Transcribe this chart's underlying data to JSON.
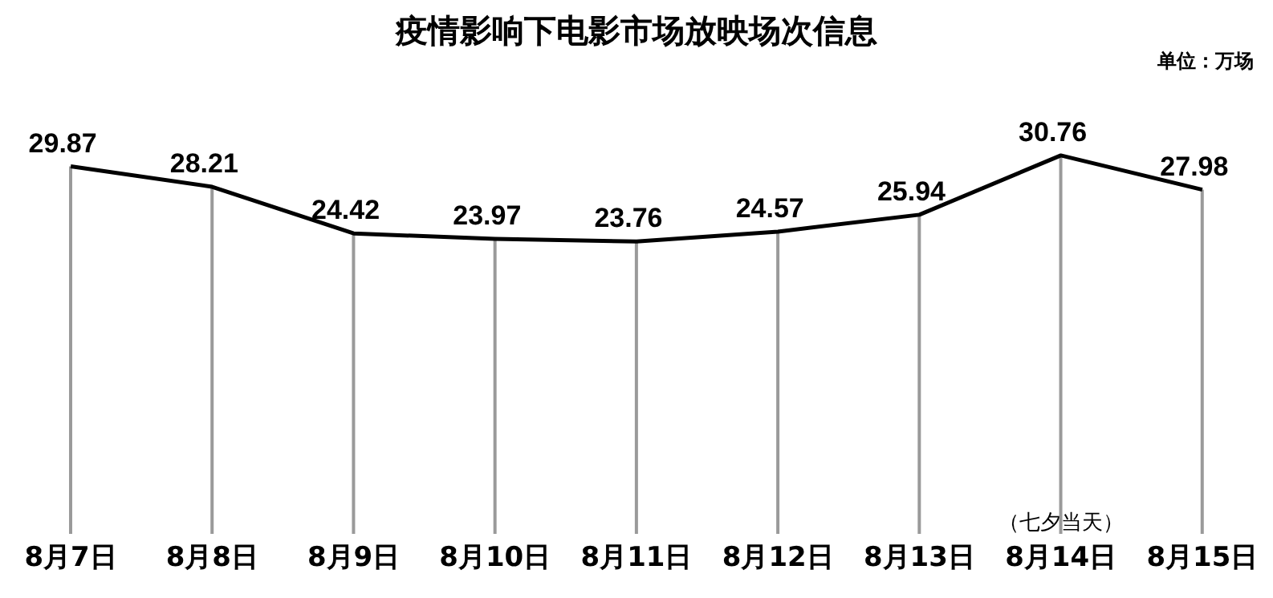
{
  "chart_data": {
    "type": "line",
    "title": "疫情影响下电影市场放映场次信息",
    "categories": [
      "8月7日",
      "8月8日",
      "8月9日",
      "8月10日",
      "8月11日",
      "8月12日",
      "8月13日",
      "8月14日",
      "8月15日"
    ],
    "series": [
      {
        "color": "#000000",
        "values": [
          29.87,
          28.21,
          24.42,
          23.97,
          23.76,
          24.57,
          25.94,
          30.76,
          27.98
        ],
        "value_labels": [
          "29.87",
          "28.21",
          "24.42",
          "23.97",
          "23.76",
          "24.57",
          "25.94",
          "30.76",
          "27.98"
        ]
      },
      {
        "type": "bar",
        "color": "#9a9a9a",
        "values": [
          29.87,
          28.21,
          24.42,
          23.97,
          23.76,
          24.57,
          25.94,
          30.76,
          27.98
        ]
      }
    ],
    "tick_labels": "x",
    "marker": "none",
    "annotations": [
      "单位：万场",
      "（七夕当天）"
    ]
  }
}
